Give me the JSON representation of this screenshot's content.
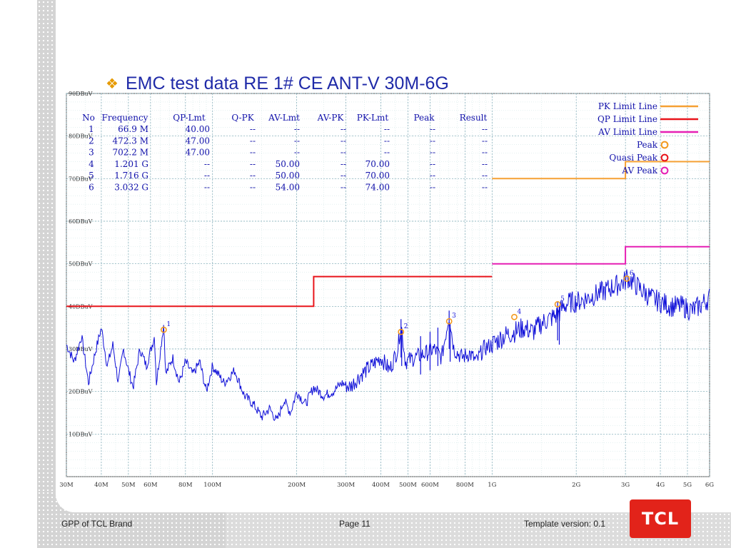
{
  "slide": {
    "title": "EMC test data RE 1# CE ANT-V  30M-6G",
    "footer_left": "GPP of TCL Brand",
    "footer_page": "Page  11",
    "footer_right": "Template version: 0.1",
    "logo_text": "TCL",
    "bullet_icon": "diamond-bullet-icon"
  },
  "chart_data": {
    "type": "line",
    "x_scale": "log",
    "x_unit": "Hz",
    "xlim": [
      30000000,
      6000000000
    ],
    "ylim": [
      0,
      90
    ],
    "grid": true,
    "y_ticks": [
      {
        "value": 10,
        "label": "10DBuV"
      },
      {
        "value": 20,
        "label": "20DBuV"
      },
      {
        "value": 30,
        "label": "30DBuV"
      },
      {
        "value": 40,
        "label": "40DBuV"
      },
      {
        "value": 50,
        "label": "50DBuV"
      },
      {
        "value": 60,
        "label": "60DBuV"
      },
      {
        "value": 70,
        "label": "70DBuV"
      },
      {
        "value": 80,
        "label": "80DBuV"
      },
      {
        "value": 90,
        "label": "90DBuV"
      }
    ],
    "x_ticks": [
      {
        "value": 30000000,
        "label": "30M"
      },
      {
        "value": 40000000,
        "label": "40M"
      },
      {
        "value": 50000000,
        "label": "50M"
      },
      {
        "value": 60000000,
        "label": "60M"
      },
      {
        "value": 80000000,
        "label": "80M"
      },
      {
        "value": 100000000,
        "label": "100M"
      },
      {
        "value": 200000000,
        "label": "200M"
      },
      {
        "value": 300000000,
        "label": "300M"
      },
      {
        "value": 400000000,
        "label": "400M"
      },
      {
        "value": 500000000,
        "label": "500M"
      },
      {
        "value": 600000000,
        "label": "600M"
      },
      {
        "value": 800000000,
        "label": "800M"
      },
      {
        "value": 1000000000,
        "label": "1G"
      },
      {
        "value": 2000000000,
        "label": "2G"
      },
      {
        "value": 3000000000,
        "label": "3G"
      },
      {
        "value": 4000000000,
        "label": "4G"
      },
      {
        "value": 5000000000,
        "label": "5G"
      },
      {
        "value": 6000000000,
        "label": "6G"
      }
    ],
    "legend": {
      "placement": "top-right",
      "entries": [
        {
          "label": "PK Limit Line",
          "kind": "line",
          "color": "#f5a033"
        },
        {
          "label": "QP Limit Line",
          "kind": "line",
          "color": "#e8151b"
        },
        {
          "label": "AV Limit Line",
          "kind": "line",
          "color": "#e61fb4"
        },
        {
          "label": "Peak",
          "kind": "marker",
          "color": "#f39a1f"
        },
        {
          "label": "Quasi Peak",
          "kind": "marker",
          "color": "#e8151b"
        },
        {
          "label": "AV Peak",
          "kind": "marker",
          "color": "#e61fb4"
        }
      ]
    },
    "limit_lines": [
      {
        "name": "QP Limit Line",
        "color": "#e8151b",
        "segments": [
          {
            "x0": 30000000,
            "x1": 230000000,
            "y": 40
          },
          {
            "x0": 230000000,
            "x1": 1000000000,
            "y": 47
          }
        ]
      },
      {
        "name": "AV Limit Line",
        "color": "#e61fb4",
        "segments": [
          {
            "x0": 1000000000,
            "x1": 3000000000,
            "y": 50
          },
          {
            "x0": 3000000000,
            "x1": 6000000000,
            "y": 54
          }
        ]
      },
      {
        "name": "PK Limit Line",
        "color": "#f5a033",
        "segments": [
          {
            "x0": 1000000000,
            "x1": 3000000000,
            "y": 70
          },
          {
            "x0": 3000000000,
            "x1": 6000000000,
            "y": 74
          }
        ]
      }
    ],
    "trace": {
      "color": "#1010d8",
      "anchors": [
        [
          30000000,
          31
        ],
        [
          32000000,
          27
        ],
        [
          34000000,
          33
        ],
        [
          36000000,
          22
        ],
        [
          38000000,
          29
        ],
        [
          40000000,
          35
        ],
        [
          42000000,
          26
        ],
        [
          44000000,
          31
        ],
        [
          46000000,
          22
        ],
        [
          48000000,
          30
        ],
        [
          50000000,
          25
        ],
        [
          52000000,
          21
        ],
        [
          55000000,
          30
        ],
        [
          58000000,
          26
        ],
        [
          62000000,
          33
        ],
        [
          63000000,
          22
        ],
        [
          66900000,
          36
        ],
        [
          68000000,
          24
        ],
        [
          72000000,
          28
        ],
        [
          76000000,
          22
        ],
        [
          80000000,
          27
        ],
        [
          85000000,
          24
        ],
        [
          90000000,
          27
        ],
        [
          95000000,
          20
        ],
        [
          100000000,
          26
        ],
        [
          110000000,
          22
        ],
        [
          120000000,
          25
        ],
        [
          130000000,
          19
        ],
        [
          140000000,
          17
        ],
        [
          150000000,
          14
        ],
        [
          160000000,
          16
        ],
        [
          170000000,
          13
        ],
        [
          180000000,
          18
        ],
        [
          190000000,
          15
        ],
        [
          200000000,
          20
        ],
        [
          215000000,
          17
        ],
        [
          230000000,
          21
        ],
        [
          250000000,
          19
        ],
        [
          270000000,
          20
        ],
        [
          290000000,
          22
        ],
        [
          310000000,
          21
        ],
        [
          340000000,
          24
        ],
        [
          370000000,
          26
        ],
        [
          400000000,
          28
        ],
        [
          430000000,
          25
        ],
        [
          460000000,
          30
        ],
        [
          472300000,
          36
        ],
        [
          490000000,
          27
        ],
        [
          530000000,
          28
        ],
        [
          580000000,
          29
        ],
        [
          620000000,
          30
        ],
        [
          660000000,
          28
        ],
        [
          702200000,
          38
        ],
        [
          730000000,
          30
        ],
        [
          780000000,
          28
        ],
        [
          830000000,
          29
        ],
        [
          880000000,
          27
        ],
        [
          930000000,
          30
        ],
        [
          1000000000,
          31
        ],
        [
          1100000000,
          33
        ],
        [
          1201000000,
          34
        ],
        [
          1300000000,
          35
        ],
        [
          1400000000,
          34
        ],
        [
          1500000000,
          36
        ],
        [
          1600000000,
          37
        ],
        [
          1716000000,
          38
        ],
        [
          1800000000,
          40
        ],
        [
          1900000000,
          41
        ],
        [
          2000000000,
          41
        ],
        [
          2200000000,
          42
        ],
        [
          2400000000,
          43
        ],
        [
          2600000000,
          44
        ],
        [
          2800000000,
          45
        ],
        [
          3000000000,
          46
        ],
        [
          3032000000,
          47
        ],
        [
          3150000000,
          46
        ],
        [
          3400000000,
          44
        ],
        [
          3700000000,
          42
        ],
        [
          4000000000,
          41
        ],
        [
          4400000000,
          40
        ],
        [
          4800000000,
          40
        ],
        [
          5200000000,
          39
        ],
        [
          5500000000,
          40
        ],
        [
          6000000000,
          42
        ]
      ],
      "spikes": [
        {
          "x": 472300000,
          "y": 37
        },
        {
          "x": 475000000,
          "y": 35
        },
        {
          "x": 555000000,
          "y": 33
        },
        {
          "x": 600000000,
          "y": 34
        },
        {
          "x": 640000000,
          "y": 35
        },
        {
          "x": 702200000,
          "y": 39
        },
        {
          "x": 708000000,
          "y": 36
        },
        {
          "x": 1716000000,
          "y": 41
        },
        {
          "x": 1740000000,
          "y": 40
        }
      ]
    },
    "markers": [
      {
        "no": "1",
        "x": 66900000,
        "y": 34.5
      },
      {
        "no": "2",
        "x": 472300000,
        "y": 34
      },
      {
        "no": "3",
        "x": 702200000,
        "y": 36.5
      },
      {
        "no": "4",
        "x": 1201000000,
        "y": 37.5
      },
      {
        "no": "5",
        "x": 1716000000,
        "y": 40.5
      },
      {
        "no": "6",
        "x": 3032000000,
        "y": 46.5
      }
    ],
    "table": {
      "columns": [
        "No",
        "Frequency",
        "QP-Lmt",
        "Q-PK",
        "AV-Lmt",
        "AV-PK",
        "PK-Lmt",
        "Peak",
        "Result"
      ],
      "rows": [
        [
          "1",
          "66.9 M",
          "40.00",
          "--",
          "--",
          "--",
          "--",
          "--",
          "--"
        ],
        [
          "2",
          "472.3 M",
          "47.00",
          "--",
          "--",
          "--",
          "--",
          "--",
          "--"
        ],
        [
          "3",
          "702.2 M",
          "47.00",
          "--",
          "--",
          "--",
          "--",
          "--",
          "--"
        ],
        [
          "4",
          "1.201 G",
          "--",
          "--",
          "50.00",
          "--",
          "70.00",
          "--",
          "--"
        ],
        [
          "5",
          "1.716 G",
          "--",
          "--",
          "50.00",
          "--",
          "70.00",
          "--",
          "--"
        ],
        [
          "6",
          "3.032 G",
          "--",
          "--",
          "54.00",
          "--",
          "74.00",
          "--",
          "--"
        ]
      ]
    }
  }
}
